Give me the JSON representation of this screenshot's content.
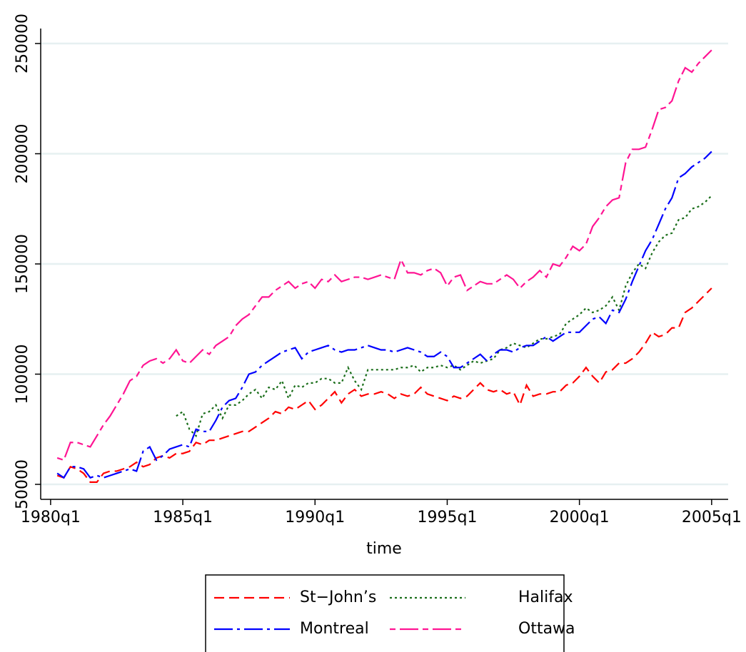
{
  "chart_data": {
    "type": "line",
    "x_label": "time",
    "x": [
      1,
      2,
      3,
      4,
      5,
      6,
      7,
      8,
      9,
      10,
      11,
      12,
      13,
      14,
      15,
      16,
      17,
      18,
      19,
      20,
      21,
      22,
      23,
      24,
      25,
      26,
      27,
      28,
      29,
      30,
      31,
      32,
      33,
      34,
      35,
      36,
      37,
      38,
      39,
      40,
      41,
      42,
      43,
      44,
      45,
      46,
      47,
      48,
      49,
      50,
      51,
      52,
      53,
      54,
      55,
      56,
      57,
      58,
      59,
      60,
      61,
      62,
      63,
      64,
      65,
      66,
      67,
      68,
      69,
      70,
      71,
      72,
      73,
      74,
      75,
      76,
      77,
      78,
      79,
      80,
      81,
      82,
      83,
      84,
      85,
      86,
      87,
      88,
      89,
      90,
      91,
      92,
      93,
      94,
      95,
      96,
      97,
      98,
      99,
      100
    ],
    "xlim": [
      -1.5,
      102.5
    ],
    "xticks": [
      {
        "value": 0,
        "label": "1980q1"
      },
      {
        "value": 20,
        "label": "1985q1"
      },
      {
        "value": 40,
        "label": "1990q1"
      },
      {
        "value": 60,
        "label": "1995q1"
      },
      {
        "value": 80,
        "label": "2000q1"
      },
      {
        "value": 100,
        "label": "2005q1"
      }
    ],
    "ylim": [
      43200,
      256800
    ],
    "yticks": [
      50000,
      100000,
      150000,
      200000,
      250000
    ],
    "grid": true,
    "series": [
      {
        "name": "St−John’s",
        "color": "#ff0000",
        "dash": "14 7",
        "values": [
          54000,
          53000,
          58000,
          57000,
          55000,
          51000,
          51000,
          55000,
          56000,
          56000,
          57000,
          58000,
          60000,
          58000,
          59000,
          62000,
          63000,
          62000,
          64000,
          64000,
          65000,
          69000,
          68000,
          70000,
          70000,
          71000,
          72000,
          73000,
          74000,
          74000,
          76000,
          78000,
          80000,
          83000,
          82000,
          85000,
          84000,
          86000,
          88000,
          84000,
          86000,
          89000,
          92000,
          87000,
          91000,
          93000,
          90000,
          91000,
          91000,
          92000,
          91000,
          89000,
          91000,
          90000,
          91000,
          94000,
          91000,
          90000,
          89000,
          88000,
          90000,
          89000,
          90000,
          93000,
          96000,
          93000,
          92000,
          93000,
          91000,
          92000,
          86000,
          95000,
          90000,
          91000,
          91000,
          92000,
          92000,
          95000,
          96000,
          99000,
          103000,
          99000,
          96000,
          101000,
          102000,
          105000,
          105000,
          107000,
          110000,
          114000,
          119000,
          117000,
          118000,
          121000,
          121000,
          128000,
          130000,
          133000,
          136000,
          139000
        ]
      },
      {
        "name": "Halifax",
        "color": "#1a6e1a",
        "dash": "3 4",
        "values": [
          null,
          null,
          null,
          null,
          null,
          null,
          null,
          null,
          null,
          null,
          null,
          null,
          null,
          null,
          null,
          null,
          null,
          null,
          81000,
          83000,
          75000,
          72000,
          82000,
          83000,
          86000,
          80000,
          86000,
          86000,
          88000,
          91000,
          93000,
          89000,
          94000,
          93000,
          97000,
          89000,
          95000,
          94000,
          96000,
          96000,
          98000,
          98000,
          96000,
          96000,
          103000,
          97000,
          93000,
          102000,
          102000,
          102000,
          102000,
          102000,
          103000,
          103000,
          104000,
          101000,
          103000,
          103000,
          104000,
          103000,
          104000,
          102000,
          104000,
          106000,
          105000,
          106000,
          107000,
          111000,
          112000,
          114000,
          113000,
          112000,
          114000,
          116000,
          116000,
          117000,
          118000,
          123000,
          125000,
          127000,
          130000,
          128000,
          129000,
          131000,
          135000,
          129000,
          140000,
          146000,
          150000,
          148000,
          155000,
          160000,
          163000,
          164000,
          170000,
          171000,
          175000,
          176000,
          178000,
          181000
        ]
      },
      {
        "name": "Montreal",
        "color": "#0000ff",
        "dash": "26 6 4 6",
        "values": [
          55000,
          53000,
          58000,
          58000,
          57000,
          53000,
          54000,
          53000,
          54000,
          55000,
          56000,
          57000,
          56000,
          65000,
          67000,
          61000,
          63000,
          66000,
          67000,
          68000,
          67000,
          75000,
          74000,
          74000,
          79000,
          85000,
          88000,
          89000,
          94000,
          100000,
          101000,
          104000,
          106000,
          108000,
          110000,
          111000,
          112000,
          107000,
          110000,
          111000,
          112000,
          113000,
          111000,
          110000,
          111000,
          111000,
          112000,
          113000,
          112000,
          111000,
          111000,
          110000,
          111000,
          112000,
          111000,
          110000,
          108000,
          108000,
          110000,
          108000,
          103000,
          103000,
          105000,
          107000,
          109000,
          106000,
          109000,
          111000,
          111000,
          110000,
          112000,
          113000,
          113000,
          115000,
          117000,
          115000,
          117000,
          119000,
          119000,
          119000,
          122000,
          125000,
          126000,
          123000,
          129000,
          128000,
          134000,
          142000,
          149000,
          156000,
          161000,
          168000,
          175000,
          180000,
          189000,
          191000,
          194000,
          196000,
          198000,
          201000
        ]
      },
      {
        "name": "Ottawa",
        "color": "#ff1493",
        "dash": "8 6 26 6",
        "values": [
          62000,
          61000,
          69000,
          69000,
          68000,
          67000,
          72000,
          77000,
          81000,
          86000,
          91000,
          97000,
          99000,
          104000,
          106000,
          107000,
          105000,
          107000,
          111000,
          106000,
          105000,
          108000,
          111000,
          109000,
          113000,
          115000,
          117000,
          122000,
          125000,
          127000,
          131000,
          135000,
          135000,
          138000,
          140000,
          142000,
          139000,
          141000,
          142000,
          139000,
          143000,
          142000,
          145000,
          142000,
          143000,
          144000,
          144000,
          143000,
          144000,
          145000,
          144000,
          143000,
          152000,
          146000,
          146000,
          145000,
          147000,
          148000,
          146000,
          140000,
          144000,
          145000,
          138000,
          140000,
          142000,
          141000,
          141000,
          143000,
          145000,
          143000,
          139000,
          142000,
          144000,
          147000,
          144000,
          150000,
          149000,
          153000,
          158000,
          156000,
          159000,
          167000,
          171000,
          176000,
          179000,
          180000,
          196000,
          202000,
          202000,
          203000,
          211000,
          220000,
          221000,
          224000,
          233000,
          239000,
          237000,
          241000,
          244000,
          247000
        ]
      }
    ]
  }
}
